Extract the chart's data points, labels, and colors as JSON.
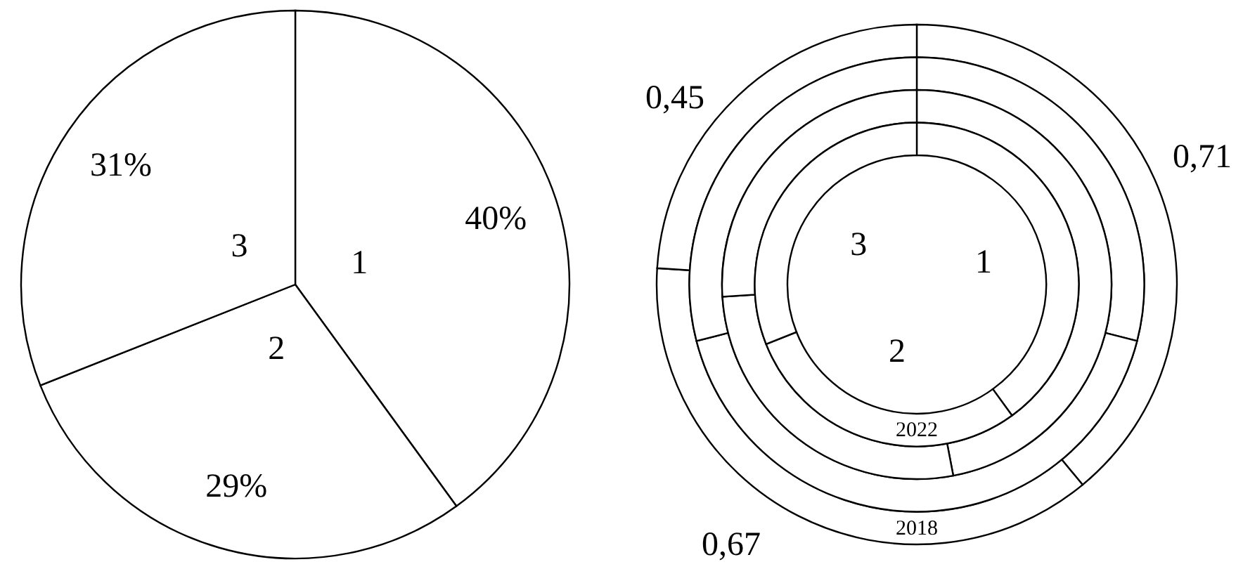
{
  "chart_data": [
    {
      "type": "pie",
      "categories": [
        "1",
        "2",
        "3"
      ],
      "values": [
        40,
        29,
        31
      ],
      "value_labels": [
        "40%",
        "29%",
        "31%"
      ],
      "colors": [
        "#ffffff",
        "#ffffff",
        "#ffffff"
      ]
    },
    {
      "type": "donut",
      "categories": [
        "1",
        "2",
        "3"
      ],
      "series": [
        {
          "name": "2018",
          "color": "#ffffff",
          "values": [
            39,
            37,
            24
          ]
        },
        {
          "color": "#ffffff",
          "values": [
            29,
            42,
            29
          ]
        },
        {
          "color": "#ffffff",
          "values": [
            47,
            27,
            26
          ]
        },
        {
          "name": "2022",
          "color": "#ffffff",
          "values": [
            40,
            29,
            31
          ]
        }
      ],
      "annotations": [
        "0,71",
        "0,45",
        "0,67"
      ]
    }
  ]
}
